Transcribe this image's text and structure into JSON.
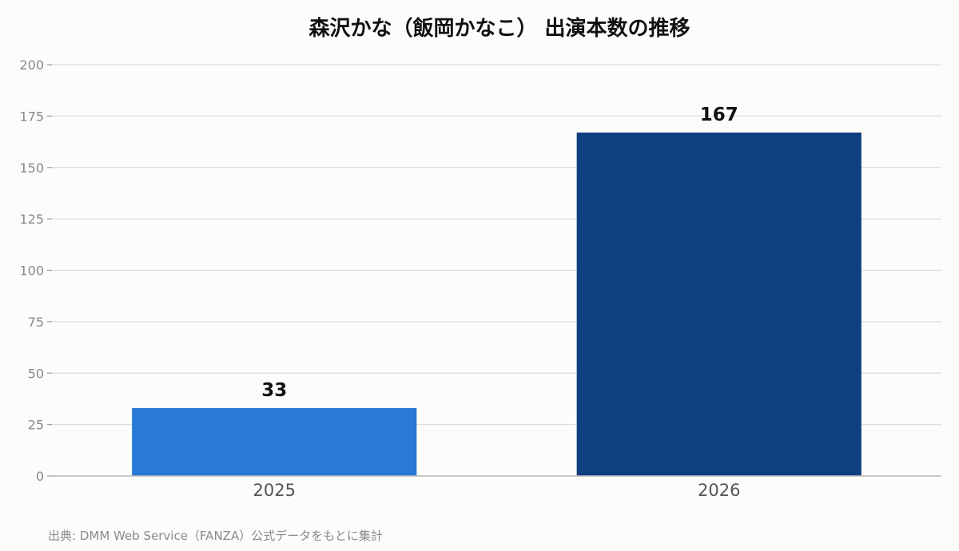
{
  "chart_data": {
    "type": "bar",
    "title": "森沢かな（飯岡かなこ） 出演本数の推移",
    "categories": [
      "2025",
      "2026"
    ],
    "values": [
      33,
      167
    ],
    "colors": [
      "#2979d6",
      "#103f82"
    ],
    "ylim": [
      0,
      200
    ],
    "yticks": [
      0,
      25,
      50,
      75,
      100,
      125,
      150,
      175,
      200
    ],
    "grid": true,
    "legend": "none",
    "xlabel": "",
    "ylabel": ""
  },
  "source_note": "出典: DMM Web Service（FANZA）公式データをもとに集計"
}
